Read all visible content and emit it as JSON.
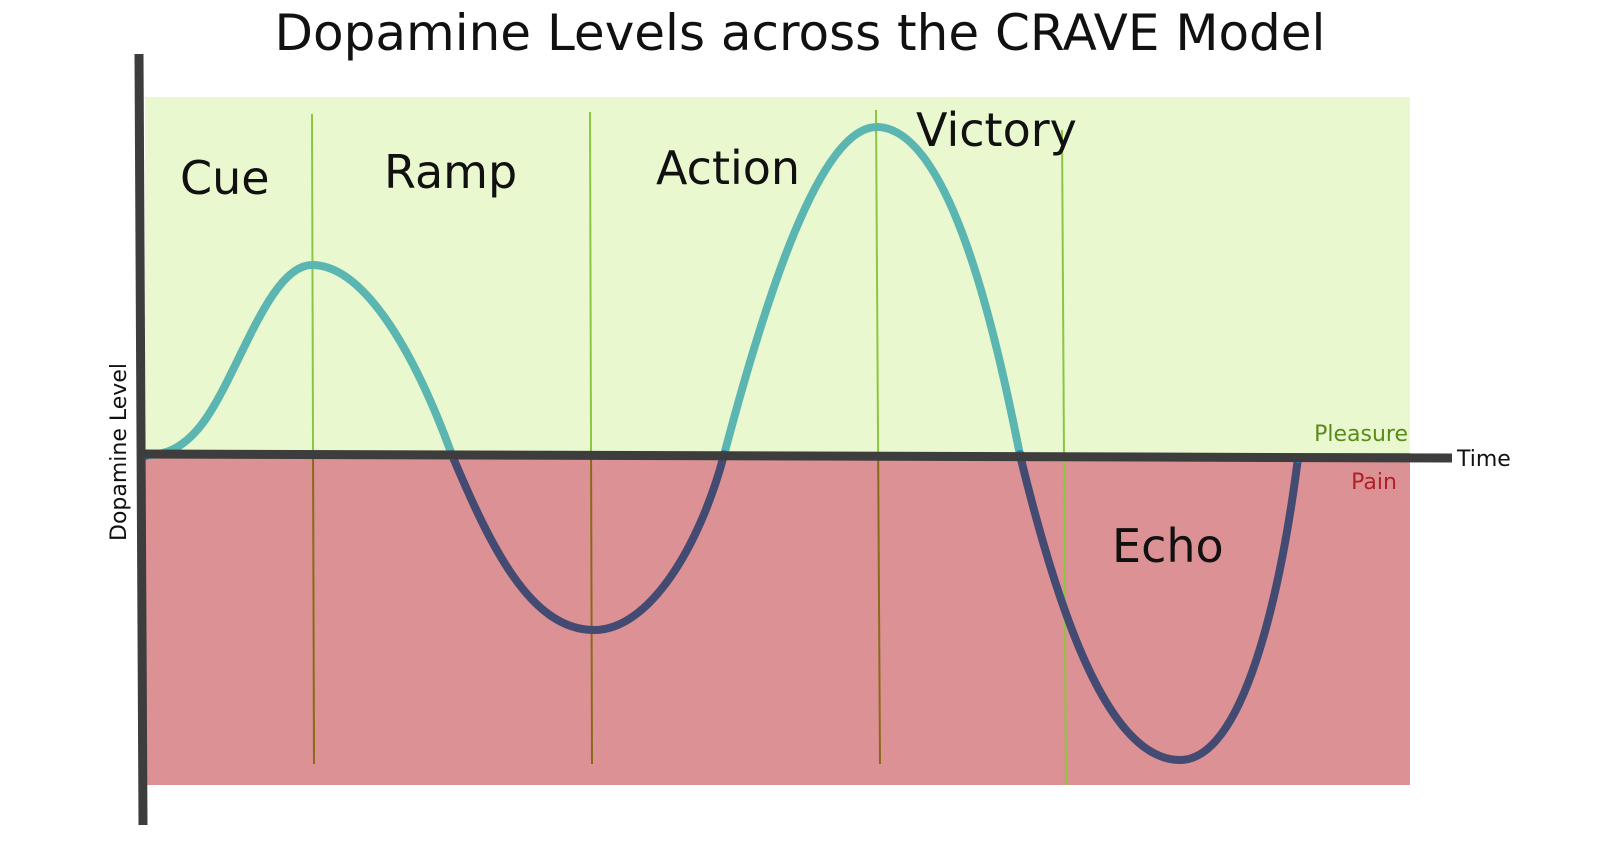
{
  "title": "Dopamine Levels across the CRAVE Model",
  "axes": {
    "y_label": "Dopamine Level",
    "x_label": "Time"
  },
  "regions": {
    "pleasure": {
      "label": "Pleasure",
      "fill": "#eaf8d0",
      "text_color": "#5a8a1a"
    },
    "pain": {
      "label": "Pain",
      "fill": "#dc9194",
      "text_color": "#b0202a"
    }
  },
  "phases": [
    {
      "label": "Cue"
    },
    {
      "label": "Ramp"
    },
    {
      "label": "Action"
    },
    {
      "label": "Victory"
    },
    {
      "label": "Echo"
    }
  ],
  "colors": {
    "axis": "#3d3d3d",
    "curve_positive": "#5bb5b0",
    "curve_negative": "#444b72",
    "divider": "#8cc63f",
    "divider_in_pain": "#8a6a1a",
    "crossing_dot": "#1f86c8"
  }
}
